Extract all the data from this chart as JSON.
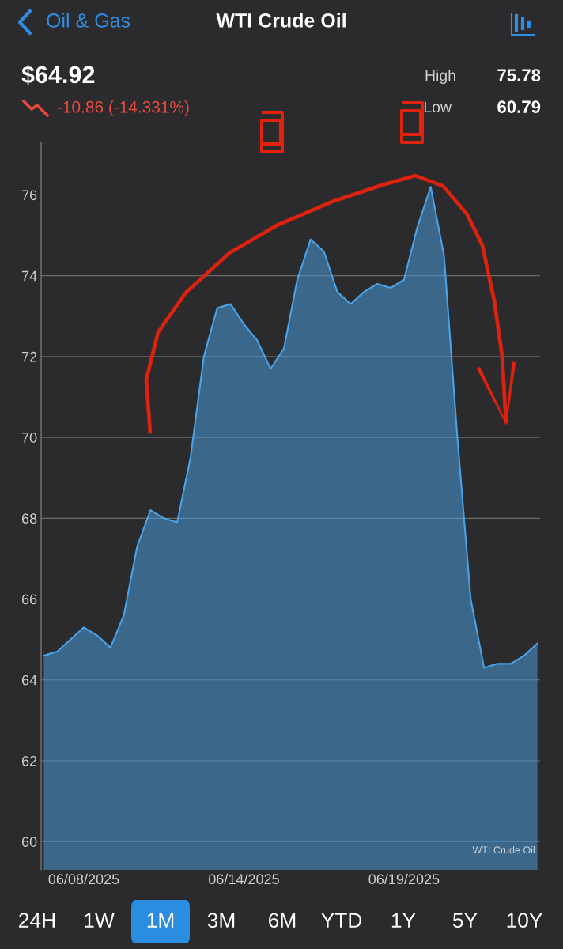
{
  "chart_data": {
    "type": "area",
    "title": "WTI Crude Oil",
    "subtitle": "$64.92",
    "annotations": [
      "Oil & Gas",
      "-10.86 (-14.331%)",
      "High",
      "75.78",
      "Low",
      "60.79",
      "WTI Crude Oil",
      "24H",
      "1W",
      "1M",
      "3M",
      "6M",
      "YTD",
      "1Y",
      "5Y",
      "10Y"
    ],
    "categories": [
      null,
      null,
      null,
      "06/08/2025",
      null,
      null,
      null,
      null,
      null,
      null,
      null,
      null,
      null,
      null,
      null,
      "06/14/2025",
      null,
      null,
      null,
      null,
      null,
      null,
      null,
      null,
      null,
      null,
      null,
      "06/19/2025",
      null,
      null,
      null,
      null,
      null,
      null,
      null,
      null,
      null,
      null
    ],
    "series": [
      {
        "color": "#4aa3e8",
        "values": [
          64.6,
          64.7,
          65.0,
          65.3,
          65.1,
          64.8,
          65.6,
          67.3,
          68.2,
          68.0,
          67.9,
          69.5,
          72.0,
          73.2,
          73.3,
          72.8,
          72.4,
          71.7,
          72.2,
          73.9,
          74.9,
          74.6,
          73.6,
          73.3,
          73.6,
          73.8,
          73.7,
          73.9,
          75.2,
          76.2,
          74.5,
          70.0,
          66.0,
          64.3,
          64.4,
          64.4,
          64.6,
          64.9
        ]
      }
    ],
    "ylim": [
      59.3,
      77.3
    ],
    "yticks": [
      60,
      62,
      64,
      66,
      68,
      70,
      72,
      74,
      76
    ],
    "grid": "y",
    "legend": false,
    "marker": "none",
    "line_style": "solid"
  }
}
